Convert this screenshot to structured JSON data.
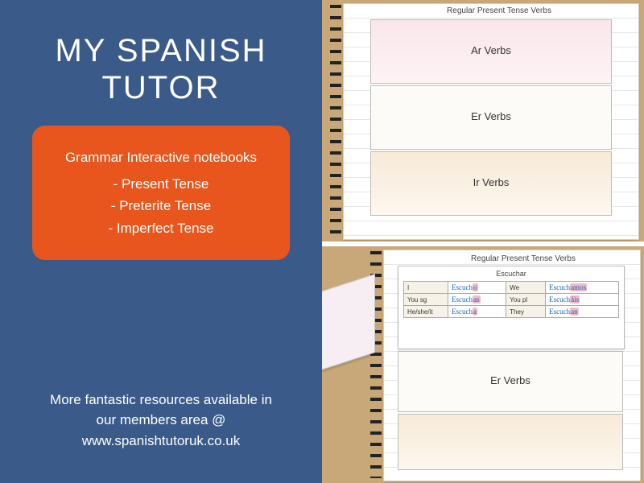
{
  "left": {
    "title_line1": "MY SPANISH",
    "title_line2": "TUTOR",
    "card_header": "Grammar Interactive notebooks",
    "card_items": [
      "- Present Tense",
      "- Preterite Tense",
      "- Imperfect Tense"
    ],
    "footer_line1": "More fantastic resources available in",
    "footer_line2": "our members area @",
    "footer_line3": "www.spanishtutoruk.co.uk"
  },
  "colors": {
    "panel_bg": "#3a5a8a",
    "card_bg": "#e8561e",
    "wood": "#c8a878",
    "ink": "#1168b3",
    "highlight": "#f6b9c9"
  },
  "notebook_top": {
    "heading": "Regular Present Tense Verbs",
    "flaps": [
      {
        "label": "Ar Verbs",
        "tint": "pink"
      },
      {
        "label": "Er Verbs",
        "tint": "plain"
      },
      {
        "label": "Ir Verbs",
        "tint": "tan"
      }
    ]
  },
  "notebook_bottom": {
    "heading": "Regular Present Tense Verbs",
    "table_title": "Escuchar",
    "rows": [
      {
        "l_pron": "I",
        "l_form_stem": "Escuch",
        "l_form_end": "o",
        "r_pron": "We",
        "r_form_stem": "Escuch",
        "r_form_end": "amos"
      },
      {
        "l_pron": "You sg",
        "l_form_stem": "Escuch",
        "l_form_end": "as",
        "r_pron": "You pl",
        "r_form_stem": "Escuch",
        "r_form_end": "áis"
      },
      {
        "l_pron": "He/she/it",
        "l_form_stem": "Escuch",
        "l_form_end": "a",
        "r_pron": "They",
        "r_form_stem": "Escuch",
        "r_form_end": "an"
      }
    ],
    "lower_flap": "Er Verbs"
  }
}
